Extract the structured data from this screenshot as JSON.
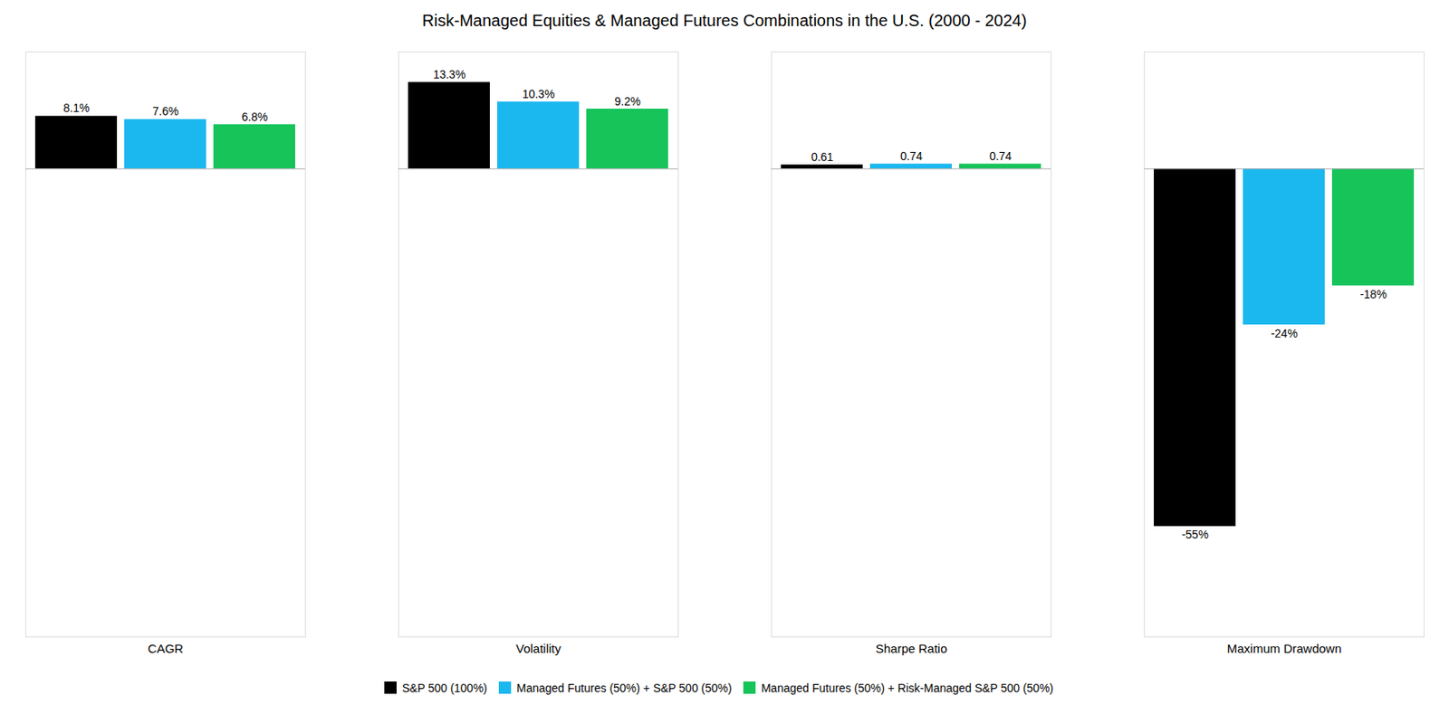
{
  "chart_data": {
    "type": "bar",
    "title": "Risk-Managed Equities & Managed Futures Combinations in the U.S. (2000 - 2024)",
    "categories": [
      "CAGR",
      "Volatility",
      "Sharpe Ratio",
      "Maximum Drawdown"
    ],
    "series": [
      {
        "name": "S&P 500 (100%)",
        "color": "#000000",
        "values": [
          8.1,
          13.3,
          0.61,
          -55
        ],
        "value_labels": [
          "8.1%",
          "13.3%",
          "0.61",
          "-55%"
        ]
      },
      {
        "name": "Managed Futures (50%) + S&P 500 (50%)",
        "color": "#1BB8F0",
        "values": [
          7.6,
          10.3,
          0.74,
          -24
        ],
        "value_labels": [
          "7.6%",
          "10.3%",
          "0.74",
          "-24%"
        ]
      },
      {
        "name": "Managed Futures (50%) + Risk-Managed S&P 500 (50%)",
        "color": "#16C45A",
        "values": [
          6.8,
          9.2,
          0.74,
          -18
        ],
        "value_labels": [
          "6.8%",
          "9.2%",
          "0.74",
          "-18%"
        ]
      }
    ],
    "ylim": [
      -72,
      18
    ],
    "data_labels": true,
    "tick_labels": "x",
    "grid": false,
    "legend": "bottom"
  }
}
